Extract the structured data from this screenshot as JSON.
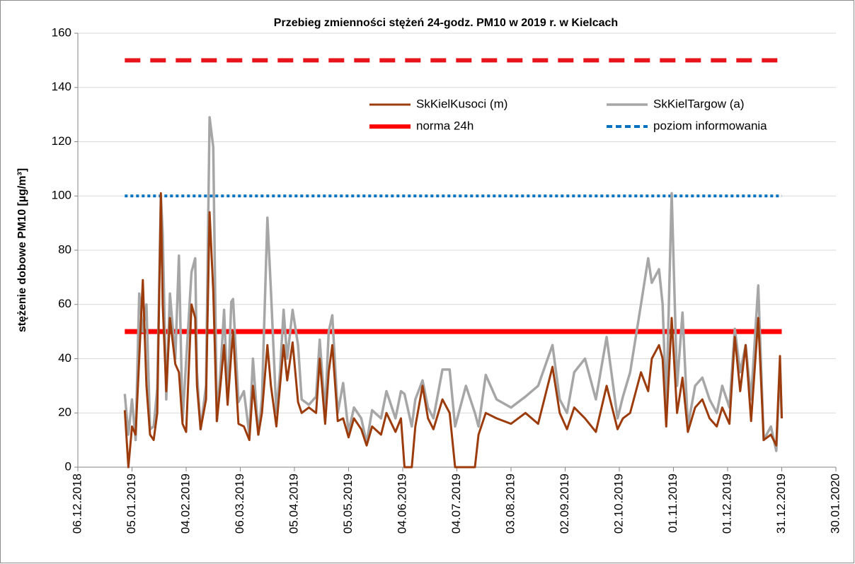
{
  "chart_data": {
    "type": "line",
    "title": "Przebieg zmienności stężeń 24-godz. PM10 w 2019 r. w Kielcach",
    "y_label": "stężenie dobowe PM10 [µg/m³]",
    "ylim": [
      0,
      160
    ],
    "yticks": [
      0,
      20,
      40,
      60,
      80,
      100,
      120,
      140,
      160
    ],
    "xlim": [
      "06.12.2018",
      "30.01.2020"
    ],
    "xticks": [
      "06.12.2018",
      "05.01.2019",
      "04.02.2019",
      "06.03.2019",
      "05.04.2019",
      "05.05.2019",
      "04.06.2019",
      "04.07.2019",
      "03.08.2019",
      "02.09.2019",
      "02.10.2019",
      "01.11.2019",
      "01.12.2019",
      "31.12.2019",
      "30.01.2020"
    ],
    "grid": true,
    "x": [
      "01.01.2019",
      "03.01.2019",
      "05.01.2019",
      "07.01.2019",
      "09.01.2019",
      "11.01.2019",
      "13.01.2019",
      "15.01.2019",
      "17.01.2019",
      "19.01.2019",
      "21.01.2019",
      "22.01.2019",
      "24.01.2019",
      "26.01.2019",
      "29.01.2019",
      "31.01.2019",
      "02.02.2019",
      "04.02.2019",
      "07.02.2019",
      "09.02.2019",
      "10.02.2019",
      "12.02.2019",
      "15.02.2019",
      "17.02.2019",
      "19.02.2019",
      "21.02.2019",
      "23.02.2019",
      "25.02.2019",
      "27.02.2019",
      "01.03.2019",
      "02.03.2019",
      "05.03.2019",
      "08.03.2019",
      "11.03.2019",
      "13.03.2019",
      "16.03.2019",
      "18.03.2019",
      "21.03.2019",
      "23.03.2019",
      "26.03.2019",
      "28.03.2019",
      "30.03.2019",
      "01.04.2019",
      "04.04.2019",
      "07.04.2019",
      "09.04.2019",
      "13.04.2019",
      "17.04.2019",
      "19.04.2019",
      "22.04.2019",
      "24.04.2019",
      "26.04.2019",
      "29.04.2019",
      "02.05.2019",
      "05.05.2019",
      "08.05.2019",
      "12.05.2019",
      "15.05.2019",
      "18.05.2019",
      "23.05.2019",
      "26.05.2019",
      "31.05.2019",
      "03.06.2019",
      "05.06.2019",
      "09.06.2019",
      "11.06.2019",
      "15.06.2019",
      "18.06.2019",
      "21.06.2019",
      "26.06.2019",
      "30.06.2019",
      "03.07.2019",
      "09.07.2019",
      "14.07.2019",
      "16.07.2019",
      "20.07.2019",
      "26.07.2019",
      "03.08.2019",
      "11.08.2019",
      "18.08.2019",
      "26.08.2019",
      "30.08.2019",
      "03.09.2019",
      "07.09.2019",
      "13.09.2019",
      "19.09.2019",
      "25.09.2019",
      "01.10.2019",
      "04.10.2019",
      "08.10.2019",
      "14.10.2019",
      "18.10.2019",
      "20.10.2019",
      "24.10.2019",
      "26.10.2019",
      "28.10.2019",
      "31.10.2019",
      "03.11.2019",
      "06.11.2019",
      "09.11.2019",
      "13.11.2019",
      "17.11.2019",
      "21.11.2019",
      "25.11.2019",
      "28.11.2019",
      "02.12.2019",
      "05.12.2019",
      "08.12.2019",
      "11.12.2019",
      "14.12.2019",
      "18.12.2019",
      "21.12.2019",
      "25.12.2019",
      "28.12.2019",
      "30.12.2019",
      "31.12.2019"
    ],
    "series": [
      {
        "name": "SkKielKusoci (m)",
        "color": "#9c3c0c",
        "width": 3,
        "dash": "solid",
        "values": [
          21,
          0,
          15,
          12,
          40,
          69,
          30,
          12,
          10,
          20,
          101,
          60,
          28,
          55,
          38,
          35,
          16,
          13,
          60,
          55,
          30,
          14,
          25,
          94,
          65,
          17,
          30,
          45,
          23,
          42,
          50,
          16,
          15,
          10,
          30,
          12,
          20,
          45,
          30,
          15,
          30,
          45,
          32,
          46,
          24,
          20,
          22,
          20,
          40,
          16,
          35,
          45,
          17,
          18,
          11,
          18,
          14,
          8,
          15,
          12,
          20,
          13,
          18,
          0,
          0,
          15,
          30,
          18,
          14,
          25,
          20,
          0,
          0,
          0,
          12,
          20,
          18,
          16,
          20,
          16,
          37,
          20,
          14,
          22,
          18,
          13,
          30,
          14,
          18,
          20,
          35,
          28,
          40,
          45,
          40,
          15,
          55,
          20,
          33,
          13,
          22,
          25,
          18,
          15,
          22,
          16,
          48,
          28,
          45,
          17,
          55,
          10,
          12,
          8,
          41,
          18
        ]
      },
      {
        "name": "SkKielTargow (a)",
        "color": "#a6a6a6",
        "width": 3.5,
        "dash": "solid",
        "values": [
          27,
          12,
          25,
          10,
          64,
          50,
          60,
          14,
          15,
          29,
          100,
          86,
          25,
          64,
          40,
          78,
          17,
          39,
          72,
          77,
          35,
          14,
          30,
          129,
          118,
          17,
          35,
          58,
          25,
          61,
          62,
          24,
          28,
          12,
          40,
          12,
          25,
          92,
          65,
          20,
          35,
          58,
          40,
          58,
          45,
          25,
          23,
          26,
          47,
          20,
          50,
          56,
          20,
          31,
          13,
          22,
          18,
          9,
          21,
          18,
          28,
          18,
          28,
          27,
          15,
          25,
          32,
          22,
          18,
          36,
          36,
          15,
          30,
          20,
          15,
          34,
          25,
          22,
          26,
          30,
          45,
          25,
          20,
          35,
          40,
          25,
          48,
          18,
          26,
          35,
          60,
          77,
          68,
          73,
          60,
          22,
          101,
          30,
          57,
          15,
          30,
          33,
          25,
          20,
          30,
          22,
          51,
          35,
          45,
          25,
          67,
          10,
          15,
          6,
          38,
          18
        ]
      },
      {
        "name": "norma 24h",
        "color": "#ff0000",
        "width": 7,
        "dash": "solid",
        "x": [
          "01.01.2019",
          "31.12.2019"
        ],
        "values": [
          50,
          50
        ]
      },
      {
        "name": "poziom informowania",
        "color": "#0070c0",
        "width": 4,
        "dash": "dotted",
        "x": [
          "01.01.2019",
          "31.12.2019"
        ],
        "values": [
          100,
          100
        ]
      },
      {
        "color": "#e8141c",
        "width": 6,
        "dash": "dashed",
        "x": [
          "01.01.2019",
          "31.12.2019"
        ],
        "values": [
          150,
          150
        ]
      }
    ]
  }
}
